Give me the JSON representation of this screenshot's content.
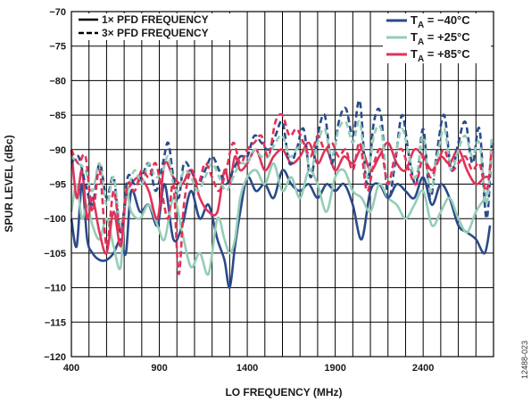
{
  "chart_data": {
    "type": "line",
    "xlabel": "LO FREQUENCY (MHz)",
    "ylabel": "SPUR LEVEL (dBc)",
    "xlim": [
      400,
      2800
    ],
    "ylim": [
      -120,
      -70
    ],
    "x_ticks": [
      400,
      900,
      1400,
      1900,
      2400
    ],
    "y_ticks": [
      -70,
      -75,
      -80,
      -85,
      -90,
      -95,
      -100,
      -105,
      -110,
      -115,
      -120
    ],
    "x_tick_labels": [
      "400",
      "900",
      "1400",
      "1900",
      "2400"
    ],
    "y_tick_labels": [
      "−70",
      "−75",
      "−80",
      "−85",
      "−90",
      "−95",
      "−100",
      "−105",
      "−110",
      "−115",
      "−120"
    ],
    "grid": true,
    "legend_style": {
      "position": "top-left",
      "entries": [
        {
          "label": "1× PFD FREQUENCY",
          "dash": "solid"
        },
        {
          "label": "3× PFD FREQUENCY",
          "dash": "dashed"
        }
      ]
    },
    "legend_temperature": {
      "position": "top-right",
      "entries": [
        {
          "prefix": "T",
          "sub": "A",
          "suffix": " = −40°C",
          "color": "#2b4a8a"
        },
        {
          "prefix": "T",
          "sub": "A",
          "suffix": " = +25°C",
          "color": "#95cdb7"
        },
        {
          "prefix": "T",
          "sub": "A",
          "suffix": " = +85°C",
          "color": "#e0335a"
        }
      ]
    },
    "figure_id": "12488-023",
    "series": [
      {
        "temp": "−40°C",
        "pfd": "1×",
        "color": "#2b4a8a",
        "x": [
          400,
          430,
          460,
          490,
          520,
          560,
          600,
          640,
          680,
          710,
          740,
          790,
          840,
          890,
          930,
          980,
          1030,
          1080,
          1130,
          1180,
          1230,
          1270,
          1300,
          1330,
          1360,
          1400,
          1450,
          1500,
          1550,
          1600,
          1650,
          1700,
          1750,
          1800,
          1850,
          1900,
          1950,
          2000,
          2050,
          2100,
          2150,
          2200,
          2250,
          2300,
          2350,
          2400,
          2450,
          2500,
          2550,
          2600,
          2650,
          2700,
          2750,
          2780
        ],
        "y": [
          -100,
          -104,
          -95,
          -103,
          -105,
          -106,
          -106,
          -105,
          -103,
          -105,
          -96,
          -99,
          -98,
          -101,
          -95,
          -103,
          -101,
          -96,
          -100,
          -98,
          -103,
          -106,
          -110,
          -104,
          -99,
          -94,
          -96,
          -95,
          -97,
          -93,
          -95,
          -96,
          -95,
          -97,
          -95,
          -96,
          -95,
          -98,
          -103,
          -96,
          -95,
          -97,
          -95,
          -96,
          -97,
          -94,
          -98,
          -95,
          -97,
          -101,
          -102,
          -103,
          -105,
          -101
        ]
      },
      {
        "temp": "+25°C",
        "pfd": "1×",
        "color": "#95cdb7",
        "x": [
          400,
          430,
          460,
          490,
          520,
          560,
          600,
          640,
          680,
          710,
          740,
          790,
          840,
          890,
          930,
          980,
          1030,
          1080,
          1130,
          1180,
          1230,
          1270,
          1300,
          1330,
          1360,
          1400,
          1450,
          1500,
          1550,
          1600,
          1650,
          1700,
          1750,
          1800,
          1850,
          1900,
          1950,
          2000,
          2050,
          2100,
          2150,
          2200,
          2250,
          2300,
          2350,
          2400,
          2450,
          2500,
          2550,
          2600,
          2650,
          2700,
          2750,
          2780
        ],
        "y": [
          -99,
          -95,
          -100,
          -98,
          -101,
          -103,
          -100,
          -104,
          -107,
          -96,
          -99,
          -100,
          -98,
          -101,
          -103,
          -97,
          -102,
          -107,
          -105,
          -108,
          -100,
          -103,
          -105,
          -103,
          -97,
          -94,
          -93,
          -95,
          -92,
          -96,
          -94,
          -97,
          -93,
          -95,
          -99,
          -94,
          -93,
          -96,
          -97,
          -99,
          -95,
          -97,
          -98,
          -100,
          -98,
          -96,
          -101,
          -99,
          -97,
          -100,
          -102,
          -99,
          -97,
          -95
        ]
      },
      {
        "temp": "+85°C",
        "pfd": "1×",
        "color": "#e0335a",
        "x": [
          400,
          430,
          460,
          490,
          520,
          560,
          600,
          640,
          680,
          710,
          740,
          790,
          840,
          890,
          930,
          980,
          1030,
          1080,
          1130,
          1180,
          1230,
          1270,
          1300,
          1330,
          1360,
          1400,
          1450,
          1500,
          1550,
          1600,
          1650,
          1700,
          1750,
          1800,
          1850,
          1900,
          1950,
          2000,
          2050,
          2100,
          2150,
          2200,
          2250,
          2300,
          2350,
          2400,
          2450,
          2500,
          2550,
          2600,
          2650,
          2700,
          2750,
          2780
        ],
        "y": [
          -90,
          -97,
          -93,
          -100,
          -97,
          -102,
          -105,
          -99,
          -104,
          -97,
          -95,
          -94,
          -96,
          -100,
          -92,
          -94,
          -95,
          -93,
          -97,
          -99,
          -99,
          -93,
          -95,
          -91,
          -93,
          -92,
          -90,
          -93,
          -91,
          -90,
          -92,
          -91,
          -89,
          -92,
          -90,
          -93,
          -91,
          -92,
          -90,
          -93,
          -91,
          -89,
          -92,
          -93,
          -90,
          -91,
          -93,
          -91,
          -92,
          -90,
          -93,
          -95,
          -94,
          -94
        ]
      },
      {
        "temp": "−40°C",
        "pfd": "3×",
        "color": "#2b4a8a",
        "x": [
          400,
          440,
          480,
          520,
          560,
          600,
          640,
          680,
          720,
          760,
          800,
          840,
          880,
          920,
          950,
          980,
          1010,
          1040,
          1080,
          1120,
          1160,
          1200,
          1240,
          1280,
          1320,
          1360,
          1400,
          1440,
          1480,
          1520,
          1560,
          1600,
          1640,
          1680,
          1720,
          1760,
          1800,
          1840,
          1880,
          1920,
          1960,
          2000,
          2040,
          2080,
          2120,
          2160,
          2200,
          2240,
          2280,
          2320,
          2360,
          2400,
          2440,
          2480,
          2520,
          2560,
          2600,
          2640,
          2680,
          2720,
          2760,
          2790
        ],
        "y": [
          -92,
          -91,
          -95,
          -98,
          -92,
          -97,
          -94,
          -102,
          -94,
          -95,
          -94,
          -92,
          -96,
          -92,
          -89,
          -94,
          -97,
          -92,
          -93,
          -95,
          -93,
          -91,
          -93,
          -95,
          -93,
          -91,
          -91,
          -88,
          -89,
          -90,
          -88,
          -86,
          -92,
          -90,
          -87,
          -94,
          -88,
          -85,
          -92,
          -86,
          -84,
          -88,
          -83,
          -95,
          -86,
          -85,
          -97,
          -92,
          -85,
          -91,
          -95,
          -87,
          -97,
          -90,
          -85,
          -93,
          -89,
          -86,
          -92,
          -87,
          -100,
          -89
        ]
      },
      {
        "temp": "+25°C",
        "pfd": "3×",
        "color": "#95cdb7",
        "x": [
          400,
          440,
          480,
          520,
          560,
          600,
          640,
          680,
          720,
          760,
          800,
          840,
          880,
          920,
          950,
          980,
          1010,
          1040,
          1080,
          1120,
          1160,
          1200,
          1240,
          1280,
          1320,
          1360,
          1400,
          1440,
          1480,
          1520,
          1560,
          1600,
          1640,
          1680,
          1720,
          1760,
          1800,
          1840,
          1880,
          1920,
          1960,
          2000,
          2040,
          2080,
          2120,
          2160,
          2200,
          2240,
          2280,
          2320,
          2360,
          2400,
          2440,
          2480,
          2520,
          2560,
          2600,
          2640,
          2680,
          2720,
          2760,
          2790
        ],
        "y": [
          -91,
          -92,
          -93,
          -96,
          -92,
          -98,
          -94,
          -101,
          -96,
          -93,
          -95,
          -92,
          -94,
          -93,
          -91,
          -95,
          -96,
          -93,
          -94,
          -96,
          -94,
          -92,
          -94,
          -96,
          -94,
          -92,
          -92,
          -90,
          -91,
          -91,
          -89,
          -88,
          -91,
          -90,
          -89,
          -93,
          -89,
          -87,
          -91,
          -87,
          -86,
          -89,
          -86,
          -94,
          -88,
          -87,
          -95,
          -91,
          -87,
          -91,
          -94,
          -88,
          -96,
          -91,
          -87,
          -93,
          -90,
          -88,
          -91,
          -89,
          -98,
          -88
        ]
      },
      {
        "temp": "+85°C",
        "pfd": "3×",
        "color": "#e0335a",
        "x": [
          400,
          440,
          480,
          520,
          560,
          600,
          640,
          680,
          720,
          760,
          800,
          840,
          880,
          920,
          950,
          980,
          1010,
          1040,
          1080,
          1120,
          1160,
          1200,
          1240,
          1280,
          1320,
          1360,
          1400,
          1440,
          1480,
          1520,
          1560,
          1600,
          1640,
          1680,
          1720,
          1760,
          1800,
          1840,
          1880,
          1920,
          1960,
          2000,
          2040,
          2080,
          2120,
          2160,
          2200,
          2240,
          2280,
          2320,
          2360,
          2400,
          2440,
          2480,
          2520,
          2560,
          2600,
          2640,
          2680,
          2720,
          2760,
          2790
        ],
        "y": [
          -90,
          -92,
          -91,
          -99,
          -93,
          -104,
          -96,
          -102,
          -95,
          -96,
          -93,
          -94,
          -92,
          -97,
          -100,
          -95,
          -108,
          -98,
          -93,
          -95,
          -92,
          -94,
          -96,
          -93,
          -89,
          -92,
          -90,
          -89,
          -88,
          -91,
          -86,
          -85,
          -88,
          -87,
          -89,
          -91,
          -88,
          -90,
          -89,
          -91,
          -90,
          -93,
          -89,
          -96,
          -92,
          -90,
          -95,
          -91,
          -90,
          -93,
          -95,
          -91,
          -94,
          -92,
          -90,
          -93,
          -92,
          -91,
          -93,
          -92,
          -96,
          -90
        ]
      }
    ]
  }
}
